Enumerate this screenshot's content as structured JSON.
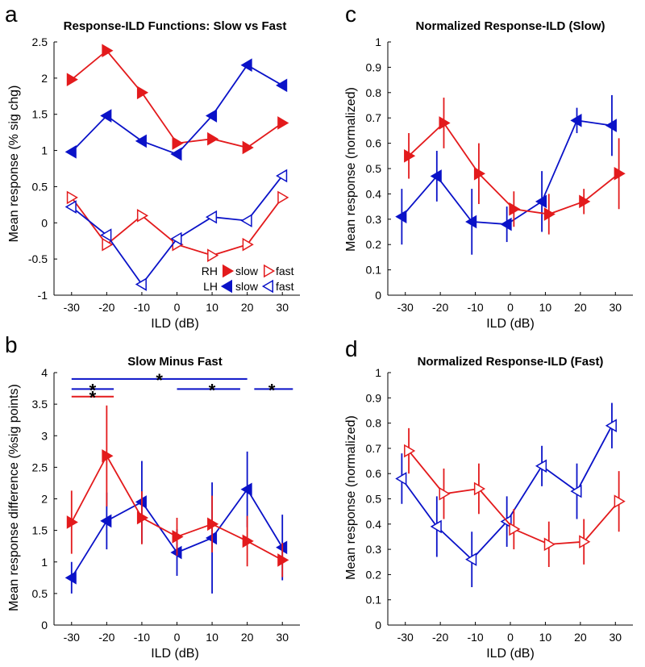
{
  "colors": {
    "rh": "#e31a1c",
    "lh": "#0a12c8",
    "axis": "#000000"
  },
  "chart_data": [
    {
      "id": "a",
      "panel_letter": "a",
      "type": "line",
      "title": "Response-ILD Functions: Slow vs Fast",
      "xlabel": "ILD (dB)",
      "ylabel": "Mean response (% sig chg)",
      "xlim": [
        -35,
        35
      ],
      "ylim": [
        -1,
        2.5
      ],
      "xticks": [
        -30,
        -20,
        -10,
        0,
        10,
        20,
        30
      ],
      "yticks": [
        -1,
        -0.5,
        0,
        0.5,
        1,
        1.5,
        2,
        2.5
      ],
      "ytick_labels": [
        "-1",
        "-0.5",
        "0",
        "0.5",
        "1",
        "1.5",
        "2",
        "2.5"
      ],
      "series": [
        {
          "name": "RH slow",
          "hemisphere": "RH",
          "color": "rh",
          "filled": true,
          "marker": "right",
          "x": [
            -30,
            -20,
            -10,
            0,
            10,
            20,
            30
          ],
          "y": [
            1.98,
            2.38,
            1.8,
            1.1,
            1.16,
            1.04,
            1.38
          ]
        },
        {
          "name": "LH slow",
          "hemisphere": "LH",
          "color": "lh",
          "filled": true,
          "marker": "left",
          "x": [
            -30,
            -20,
            -10,
            0,
            10,
            20,
            30
          ],
          "y": [
            0.98,
            1.48,
            1.13,
            0.95,
            1.48,
            2.18,
            1.9
          ]
        },
        {
          "name": "RH fast",
          "hemisphere": "RH",
          "color": "rh",
          "filled": false,
          "marker": "right",
          "x": [
            -30,
            -20,
            -10,
            0,
            10,
            20,
            30
          ],
          "y": [
            0.35,
            -0.3,
            0.1,
            -0.3,
            -0.45,
            -0.3,
            0.35
          ]
        },
        {
          "name": "LH fast",
          "hemisphere": "LH",
          "color": "lh",
          "filled": false,
          "marker": "left",
          "x": [
            -30,
            -20,
            -10,
            0,
            10,
            20,
            30
          ],
          "y": [
            0.22,
            -0.17,
            -0.85,
            -0.22,
            0.08,
            0.03,
            0.65
          ]
        }
      ],
      "legend": {
        "position": "bottom-right",
        "rows": [
          {
            "label": "RH",
            "color": "rh",
            "marker": "right",
            "slow": "slow",
            "fast": "fast"
          },
          {
            "label": "LH",
            "color": "lh",
            "marker": "left",
            "slow": "slow",
            "fast": "fast"
          }
        ]
      }
    },
    {
      "id": "b",
      "panel_letter": "b",
      "type": "line",
      "title": "Slow Minus Fast",
      "xlabel": "ILD (dB)",
      "ylabel": "Mean response difference (%sig points)",
      "xlim": [
        -35,
        35
      ],
      "ylim": [
        0,
        4
      ],
      "xticks": [
        -30,
        -20,
        -10,
        0,
        10,
        20,
        30
      ],
      "yticks": [
        0,
        0.5,
        1,
        1.5,
        2,
        2.5,
        3,
        3.5,
        4
      ],
      "ytick_labels": [
        "0",
        "0.5",
        "1",
        "1.5",
        "2",
        "2.5",
        "3",
        "3.5",
        "4"
      ],
      "series": [
        {
          "name": "LH",
          "color": "lh",
          "filled": true,
          "marker": "left",
          "x": [
            -30,
            -20,
            -10,
            0,
            10,
            20,
            30
          ],
          "y": [
            0.75,
            1.65,
            1.95,
            1.15,
            1.38,
            2.15,
            1.23
          ],
          "err": [
            0.25,
            0.45,
            0.65,
            0.37,
            0.88,
            0.6,
            0.52
          ]
        },
        {
          "name": "RH",
          "color": "rh",
          "filled": true,
          "marker": "right",
          "x": [
            -30,
            -20,
            -10,
            0,
            10,
            20,
            30
          ],
          "y": [
            1.63,
            2.68,
            1.7,
            1.4,
            1.6,
            1.33,
            1.03
          ],
          "err": [
            0.5,
            0.8,
            0.42,
            0.3,
            0.45,
            0.4,
            0.27
          ]
        }
      ],
      "significance": [
        {
          "color": "lh",
          "y": 3.9,
          "x0": -30,
          "x1": 20,
          "star_x": -5
        },
        {
          "color": "lh",
          "y": 3.74,
          "x0": -30,
          "x1": -18,
          "star_x": -24
        },
        {
          "color": "lh",
          "y": 3.74,
          "x0": 0,
          "x1": 18,
          "star_x": 10
        },
        {
          "color": "lh",
          "y": 3.74,
          "x0": 22,
          "x1": 33,
          "star_x": 27
        },
        {
          "color": "rh",
          "y": 3.62,
          "x0": -30,
          "x1": -18,
          "star_x": -24
        }
      ]
    },
    {
      "id": "c",
      "panel_letter": "c",
      "type": "line",
      "title": "Normalized Response-ILD (Slow)",
      "xlabel": "ILD (dB)",
      "ylabel": "Mean response (normalized)",
      "xlim": [
        -35,
        35
      ],
      "ylim": [
        0,
        1
      ],
      "xticks": [
        -30,
        -20,
        -10,
        0,
        10,
        20,
        30
      ],
      "yticks": [
        0,
        0.1,
        0.2,
        0.3,
        0.4,
        0.5,
        0.6,
        0.7,
        0.8,
        0.9,
        1
      ],
      "ytick_labels": [
        "0",
        "0.1",
        "0.2",
        "0.3",
        "0.4",
        "0.5",
        "0.6",
        "0.7",
        "0.8",
        "0.9",
        "1"
      ],
      "series": [
        {
          "name": "LH slow",
          "color": "lh",
          "filled": true,
          "marker": "left",
          "x": [
            -31,
            -21,
            -11,
            -1,
            9,
            19,
            29
          ],
          "y": [
            0.31,
            0.47,
            0.29,
            0.28,
            0.37,
            0.69,
            0.67
          ],
          "err": [
            0.11,
            0.1,
            0.13,
            0.07,
            0.12,
            0.05,
            0.12
          ]
        },
        {
          "name": "RH slow",
          "color": "rh",
          "filled": true,
          "marker": "right",
          "x": [
            -29,
            -19,
            -9,
            1,
            11,
            21,
            31
          ],
          "y": [
            0.55,
            0.68,
            0.48,
            0.34,
            0.32,
            0.37,
            0.48
          ],
          "err": [
            0.09,
            0.1,
            0.12,
            0.07,
            0.08,
            0.05,
            0.14
          ]
        }
      ]
    },
    {
      "id": "d",
      "panel_letter": "d",
      "type": "line",
      "title": "Normalized Response-ILD (Fast)",
      "xlabel": "ILD (dB)",
      "ylabel": "Mean response (normalized)",
      "xlim": [
        -35,
        35
      ],
      "ylim": [
        0,
        1
      ],
      "xticks": [
        -30,
        -20,
        -10,
        0,
        10,
        20,
        30
      ],
      "yticks": [
        0,
        0.1,
        0.2,
        0.3,
        0.4,
        0.5,
        0.6,
        0.7,
        0.8,
        0.9,
        1
      ],
      "ytick_labels": [
        "0",
        "0.1",
        "0.2",
        "0.3",
        "0.4",
        "0.5",
        "0.6",
        "0.7",
        "0.8",
        "0.9",
        "1"
      ],
      "series": [
        {
          "name": "LH fast",
          "color": "lh",
          "filled": false,
          "marker": "left",
          "x": [
            -31,
            -21,
            -11,
            -1,
            9,
            19,
            29
          ],
          "y": [
            0.58,
            0.39,
            0.26,
            0.41,
            0.63,
            0.53,
            0.79
          ],
          "err": [
            0.1,
            0.12,
            0.11,
            0.1,
            0.08,
            0.11,
            0.09
          ]
        },
        {
          "name": "RH fast",
          "color": "rh",
          "filled": false,
          "marker": "right",
          "x": [
            -29,
            -19,
            -9,
            1,
            11,
            21,
            31
          ],
          "y": [
            0.69,
            0.52,
            0.54,
            0.38,
            0.32,
            0.33,
            0.49
          ],
          "err": [
            0.09,
            0.1,
            0.1,
            0.08,
            0.09,
            0.09,
            0.12
          ]
        }
      ]
    }
  ]
}
